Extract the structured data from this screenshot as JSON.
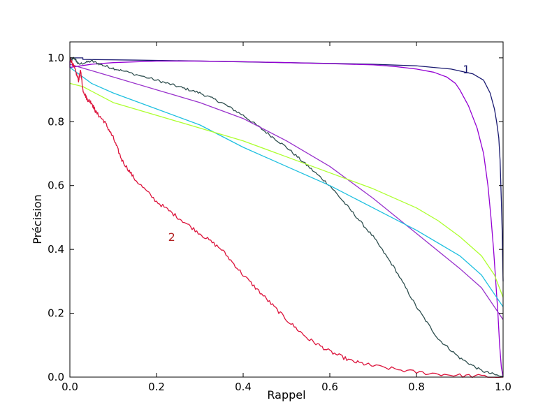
{
  "chart_data": {
    "type": "line",
    "xlabel": "Rappel",
    "ylabel": "Précision",
    "xlim": [
      0.0,
      1.0
    ],
    "ylim": [
      0.0,
      1.05
    ],
    "grid": false,
    "legend": "none",
    "x_ticks": [
      "0.0",
      "0.2",
      "0.4",
      "0.6",
      "0.8",
      "1.0"
    ],
    "y_ticks": [
      "0.0",
      "0.2",
      "0.4",
      "0.6",
      "0.8",
      "1.0"
    ],
    "annotations": [
      {
        "text": "1",
        "x": 0.915,
        "y": 0.965,
        "color": "#191970"
      },
      {
        "text": "2",
        "x": 0.235,
        "y": 0.44,
        "color": "#b22222"
      }
    ],
    "series": [
      {
        "color": "#191970",
        "jitter": 0,
        "points": [
          [
            0.0,
            1.0
          ],
          [
            0.03,
            1.0
          ],
          [
            0.03,
            0.995
          ],
          [
            0.15,
            0.993
          ],
          [
            0.3,
            0.99
          ],
          [
            0.5,
            0.985
          ],
          [
            0.7,
            0.98
          ],
          [
            0.8,
            0.975
          ],
          [
            0.88,
            0.965
          ],
          [
            0.93,
            0.95
          ],
          [
            0.955,
            0.93
          ],
          [
            0.97,
            0.89
          ],
          [
            0.98,
            0.84
          ],
          [
            0.985,
            0.8
          ],
          [
            0.99,
            0.75
          ],
          [
            0.993,
            0.68
          ],
          [
            0.996,
            0.55
          ],
          [
            0.998,
            0.45
          ],
          [
            1.0,
            0.3
          ]
        ]
      },
      {
        "color": "#9400d3",
        "jitter": 0,
        "points": [
          [
            0.0,
            0.99
          ],
          [
            0.0,
            0.97
          ],
          [
            0.05,
            0.98
          ],
          [
            0.1,
            0.985
          ],
          [
            0.2,
            0.99
          ],
          [
            0.3,
            0.99
          ],
          [
            0.4,
            0.988
          ],
          [
            0.5,
            0.985
          ],
          [
            0.6,
            0.982
          ],
          [
            0.7,
            0.978
          ],
          [
            0.75,
            0.973
          ],
          [
            0.8,
            0.965
          ],
          [
            0.84,
            0.955
          ],
          [
            0.87,
            0.94
          ],
          [
            0.89,
            0.92
          ],
          [
            0.9,
            0.9
          ],
          [
            0.92,
            0.85
          ],
          [
            0.94,
            0.78
          ],
          [
            0.955,
            0.7
          ],
          [
            0.965,
            0.6
          ],
          [
            0.972,
            0.5
          ],
          [
            0.978,
            0.4
          ],
          [
            0.983,
            0.3
          ],
          [
            0.988,
            0.2
          ],
          [
            0.992,
            0.1
          ],
          [
            0.996,
            0.03
          ],
          [
            1.0,
            0.0
          ]
        ]
      },
      {
        "color": "#2f4f4f",
        "jitter": 0.004,
        "points": [
          [
            0.0,
            0.99
          ],
          [
            0.01,
            1.0
          ],
          [
            0.02,
            0.98
          ],
          [
            0.05,
            0.99
          ],
          [
            0.08,
            0.975
          ],
          [
            0.12,
            0.96
          ],
          [
            0.2,
            0.93
          ],
          [
            0.25,
            0.91
          ],
          [
            0.3,
            0.89
          ],
          [
            0.35,
            0.86
          ],
          [
            0.4,
            0.82
          ],
          [
            0.45,
            0.77
          ],
          [
            0.5,
            0.72
          ],
          [
            0.55,
            0.66
          ],
          [
            0.6,
            0.6
          ],
          [
            0.65,
            0.52
          ],
          [
            0.7,
            0.44
          ],
          [
            0.75,
            0.34
          ],
          [
            0.8,
            0.22
          ],
          [
            0.85,
            0.12
          ],
          [
            0.9,
            0.06
          ],
          [
            0.95,
            0.02
          ],
          [
            1.0,
            0.0
          ]
        ]
      },
      {
        "color": "#9932cc",
        "jitter": 0,
        "points": [
          [
            0.0,
            0.98
          ],
          [
            0.1,
            0.94
          ],
          [
            0.2,
            0.9
          ],
          [
            0.3,
            0.86
          ],
          [
            0.4,
            0.81
          ],
          [
            0.5,
            0.74
          ],
          [
            0.6,
            0.66
          ],
          [
            0.7,
            0.56
          ],
          [
            0.8,
            0.45
          ],
          [
            0.9,
            0.34
          ],
          [
            0.95,
            0.28
          ],
          [
            1.0,
            0.18
          ]
        ]
      },
      {
        "color": "#1fc0e0",
        "jitter": 0,
        "points": [
          [
            0.0,
            0.97
          ],
          [
            0.05,
            0.92
          ],
          [
            0.1,
            0.89
          ],
          [
            0.2,
            0.84
          ],
          [
            0.3,
            0.79
          ],
          [
            0.4,
            0.72
          ],
          [
            0.5,
            0.66
          ],
          [
            0.6,
            0.6
          ],
          [
            0.7,
            0.53
          ],
          [
            0.8,
            0.46
          ],
          [
            0.9,
            0.38
          ],
          [
            0.95,
            0.32
          ],
          [
            1.0,
            0.22
          ]
        ]
      },
      {
        "color": "#adff2f",
        "jitter": 0,
        "points": [
          [
            0.0,
            0.92
          ],
          [
            0.03,
            0.91
          ],
          [
            0.1,
            0.86
          ],
          [
            0.2,
            0.82
          ],
          [
            0.3,
            0.78
          ],
          [
            0.4,
            0.74
          ],
          [
            0.5,
            0.69
          ],
          [
            0.6,
            0.64
          ],
          [
            0.7,
            0.59
          ],
          [
            0.8,
            0.53
          ],
          [
            0.85,
            0.49
          ],
          [
            0.9,
            0.44
          ],
          [
            0.95,
            0.38
          ],
          [
            0.98,
            0.32
          ],
          [
            1.0,
            0.25
          ]
        ]
      },
      {
        "color": "#dc143c",
        "jitter": 0.006,
        "points": [
          [
            0.0,
            1.0
          ],
          [
            0.01,
            0.97
          ],
          [
            0.02,
            0.93
          ],
          [
            0.025,
            0.96
          ],
          [
            0.03,
            0.9
          ],
          [
            0.04,
            0.87
          ],
          [
            0.05,
            0.86
          ],
          [
            0.06,
            0.83
          ],
          [
            0.08,
            0.8
          ],
          [
            0.1,
            0.75
          ],
          [
            0.12,
            0.68
          ],
          [
            0.15,
            0.62
          ],
          [
            0.2,
            0.55
          ],
          [
            0.25,
            0.5
          ],
          [
            0.3,
            0.45
          ],
          [
            0.35,
            0.4
          ],
          [
            0.4,
            0.32
          ],
          [
            0.45,
            0.25
          ],
          [
            0.5,
            0.18
          ],
          [
            0.55,
            0.12
          ],
          [
            0.6,
            0.08
          ],
          [
            0.65,
            0.05
          ],
          [
            0.7,
            0.035
          ],
          [
            0.8,
            0.015
          ],
          [
            0.9,
            0.005
          ],
          [
            1.0,
            0.0
          ]
        ]
      }
    ]
  }
}
